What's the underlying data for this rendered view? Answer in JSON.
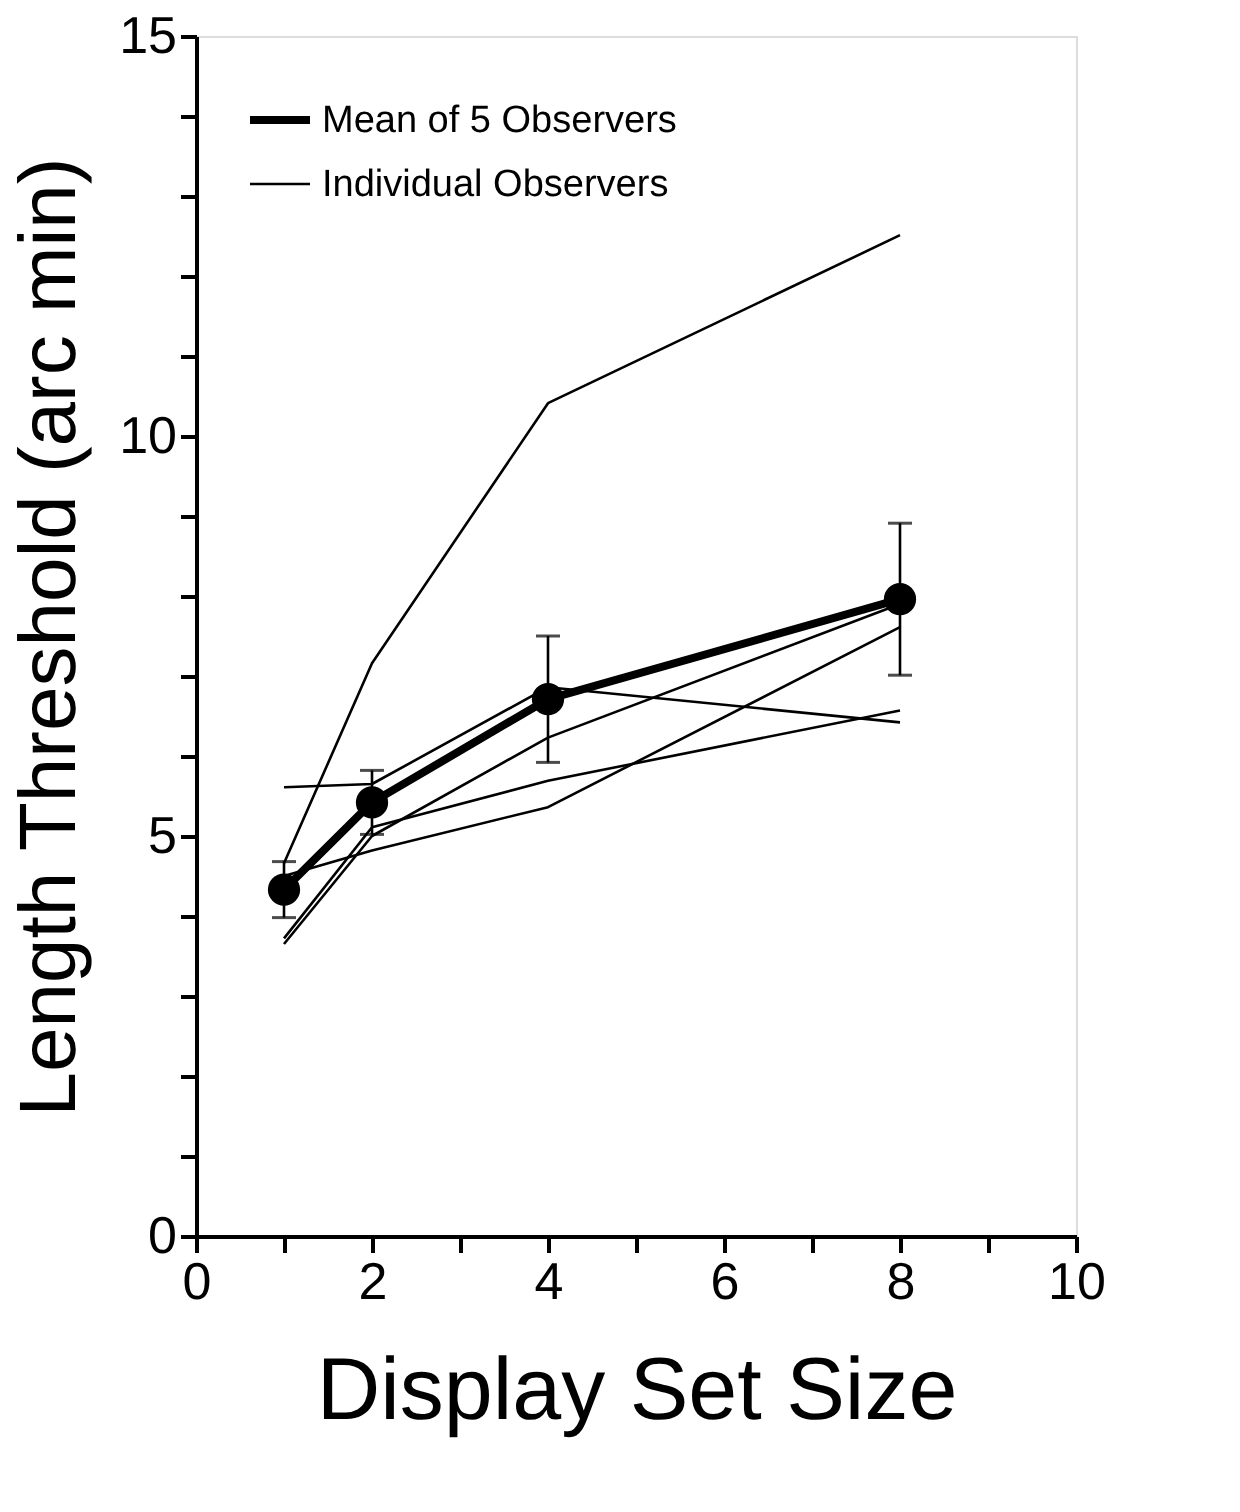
{
  "chart_data": {
    "type": "line",
    "xlabel": "Display Set Size",
    "ylabel": "Length Threshold (arc min)",
    "x": [
      1,
      2,
      4,
      8
    ],
    "series": [
      {
        "name": "Mean of 5 Observers",
        "color": "#000000",
        "values": [
          4.33,
          5.42,
          6.71,
          7.96
        ],
        "errors": [
          0.35,
          0.4,
          0.79,
          0.95
        ],
        "marker": "circle"
      },
      {
        "name": "Individual Observers",
        "color": "#000000",
        "values": [
          4.66,
          7.16,
          10.41,
          12.51
        ],
        "marker": "none"
      },
      {
        "color": "#000000",
        "values": [
          5.61,
          5.65,
          6.86,
          6.42
        ],
        "marker": "none"
      },
      {
        "color": "#000000",
        "values": [
          4.5,
          4.82,
          5.36,
          7.61
        ],
        "marker": "none"
      },
      {
        "color": "#000000",
        "values": [
          3.72,
          5.11,
          5.69,
          6.57
        ],
        "marker": "none"
      },
      {
        "color": "#000000",
        "values": [
          3.65,
          5.0,
          6.23,
          7.9
        ],
        "marker": "none"
      }
    ],
    "xlim": [
      0,
      10
    ],
    "xticks": [
      0,
      {
        "value": 1,
        "label": null
      },
      2,
      {
        "value": 3,
        "label": null
      },
      4,
      {
        "value": 5,
        "label": null
      },
      6,
      {
        "value": 7,
        "label": null
      },
      8,
      {
        "value": 9,
        "label": null
      },
      10
    ],
    "ylim": [
      0,
      15
    ],
    "yticks": [
      0,
      {
        "value": 1,
        "label": null
      },
      {
        "value": 2,
        "label": null
      },
      {
        "value": 3,
        "label": null
      },
      {
        "value": 4,
        "label": null
      },
      5,
      {
        "value": 6,
        "label": null
      },
      {
        "value": 7,
        "label": null
      },
      {
        "value": 8,
        "label": null
      },
      {
        "value": 9,
        "label": null
      },
      10,
      {
        "value": 11,
        "label": null
      },
      {
        "value": 12,
        "label": null
      },
      {
        "value": 13,
        "label": null
      },
      {
        "value": 14,
        "label": null
      },
      15
    ],
    "grid": false,
    "legend": "top left"
  }
}
